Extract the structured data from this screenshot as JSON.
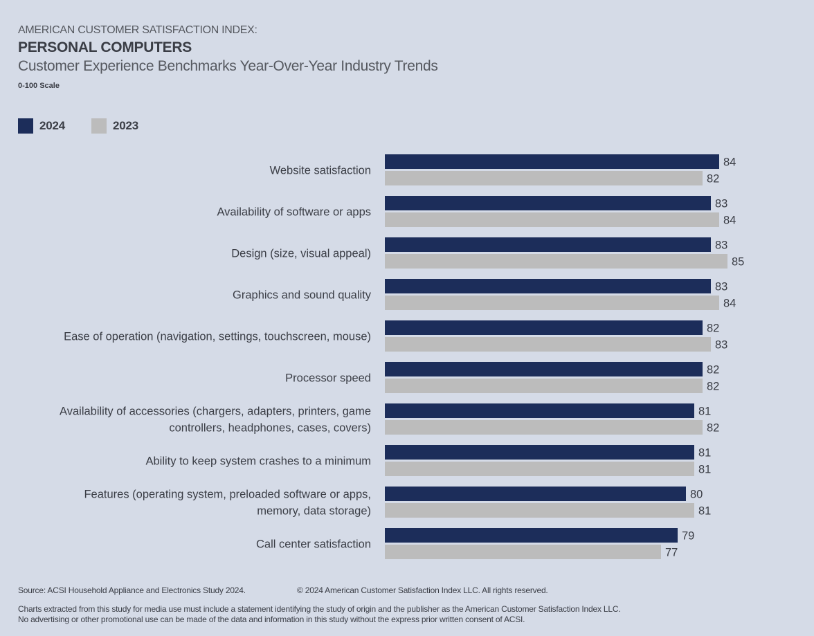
{
  "header": {
    "eyebrow": "AMERICAN CUSTOMER SATISFACTION INDEX:",
    "title": "PERSONAL COMPUTERS",
    "subtitle": "Customer Experience Benchmarks Year-Over-Year Industry Trends",
    "scale_note": "0-100 Scale"
  },
  "colors": {
    "background": "#d5dbe7",
    "series_2024": "#1c2d5a",
    "series_2023": "#bcbcbc",
    "text": "#3a3d45"
  },
  "chart_data": {
    "type": "bar",
    "orientation": "horizontal",
    "title": "PERSONAL COMPUTERS",
    "subtitle": "Customer Experience Benchmarks Year-Over-Year Industry Trends",
    "xlabel": "",
    "ylabel": "",
    "scale": "0-100 Scale",
    "legend_position": "top-left",
    "grid": false,
    "categories": [
      [
        "Website satisfaction"
      ],
      [
        "Availability of software or apps"
      ],
      [
        "Design (size, visual appeal)"
      ],
      [
        "Graphics and sound quality"
      ],
      [
        "Ease of operation (navigation, settings, touchscreen, mouse)"
      ],
      [
        "Processor speed"
      ],
      [
        "Availability of accessories (chargers, adapters, printers, game",
        "controllers, headphones, cases, covers)"
      ],
      [
        "Ability to keep system crashes to a minimum"
      ],
      [
        "Features (operating system, preloaded software or apps,",
        "memory, data storage)"
      ],
      [
        "Call center satisfaction"
      ]
    ],
    "series": [
      {
        "name": "2024",
        "color": "#1c2d5a",
        "values": [
          84,
          83,
          83,
          83,
          82,
          82,
          81,
          81,
          80,
          79
        ]
      },
      {
        "name": "2023",
        "color": "#bcbcbc",
        "values": [
          82,
          84,
          85,
          84,
          83,
          82,
          82,
          81,
          81,
          77
        ]
      }
    ]
  },
  "footer": {
    "source": "Source: ACSI Household Appliance and Electronics Study 2024.",
    "copyright": "© 2024 American Customer Satisfaction Index LLC. All rights reserved.",
    "notice_line1": "Charts extracted from this study for media use must include a statement identifying the study of origin and the publisher as the American Customer Satisfaction Index LLC.",
    "notice_line2": "No advertising or other promotional use can be made of the data and information in this study without the express prior written consent of ACSI."
  }
}
